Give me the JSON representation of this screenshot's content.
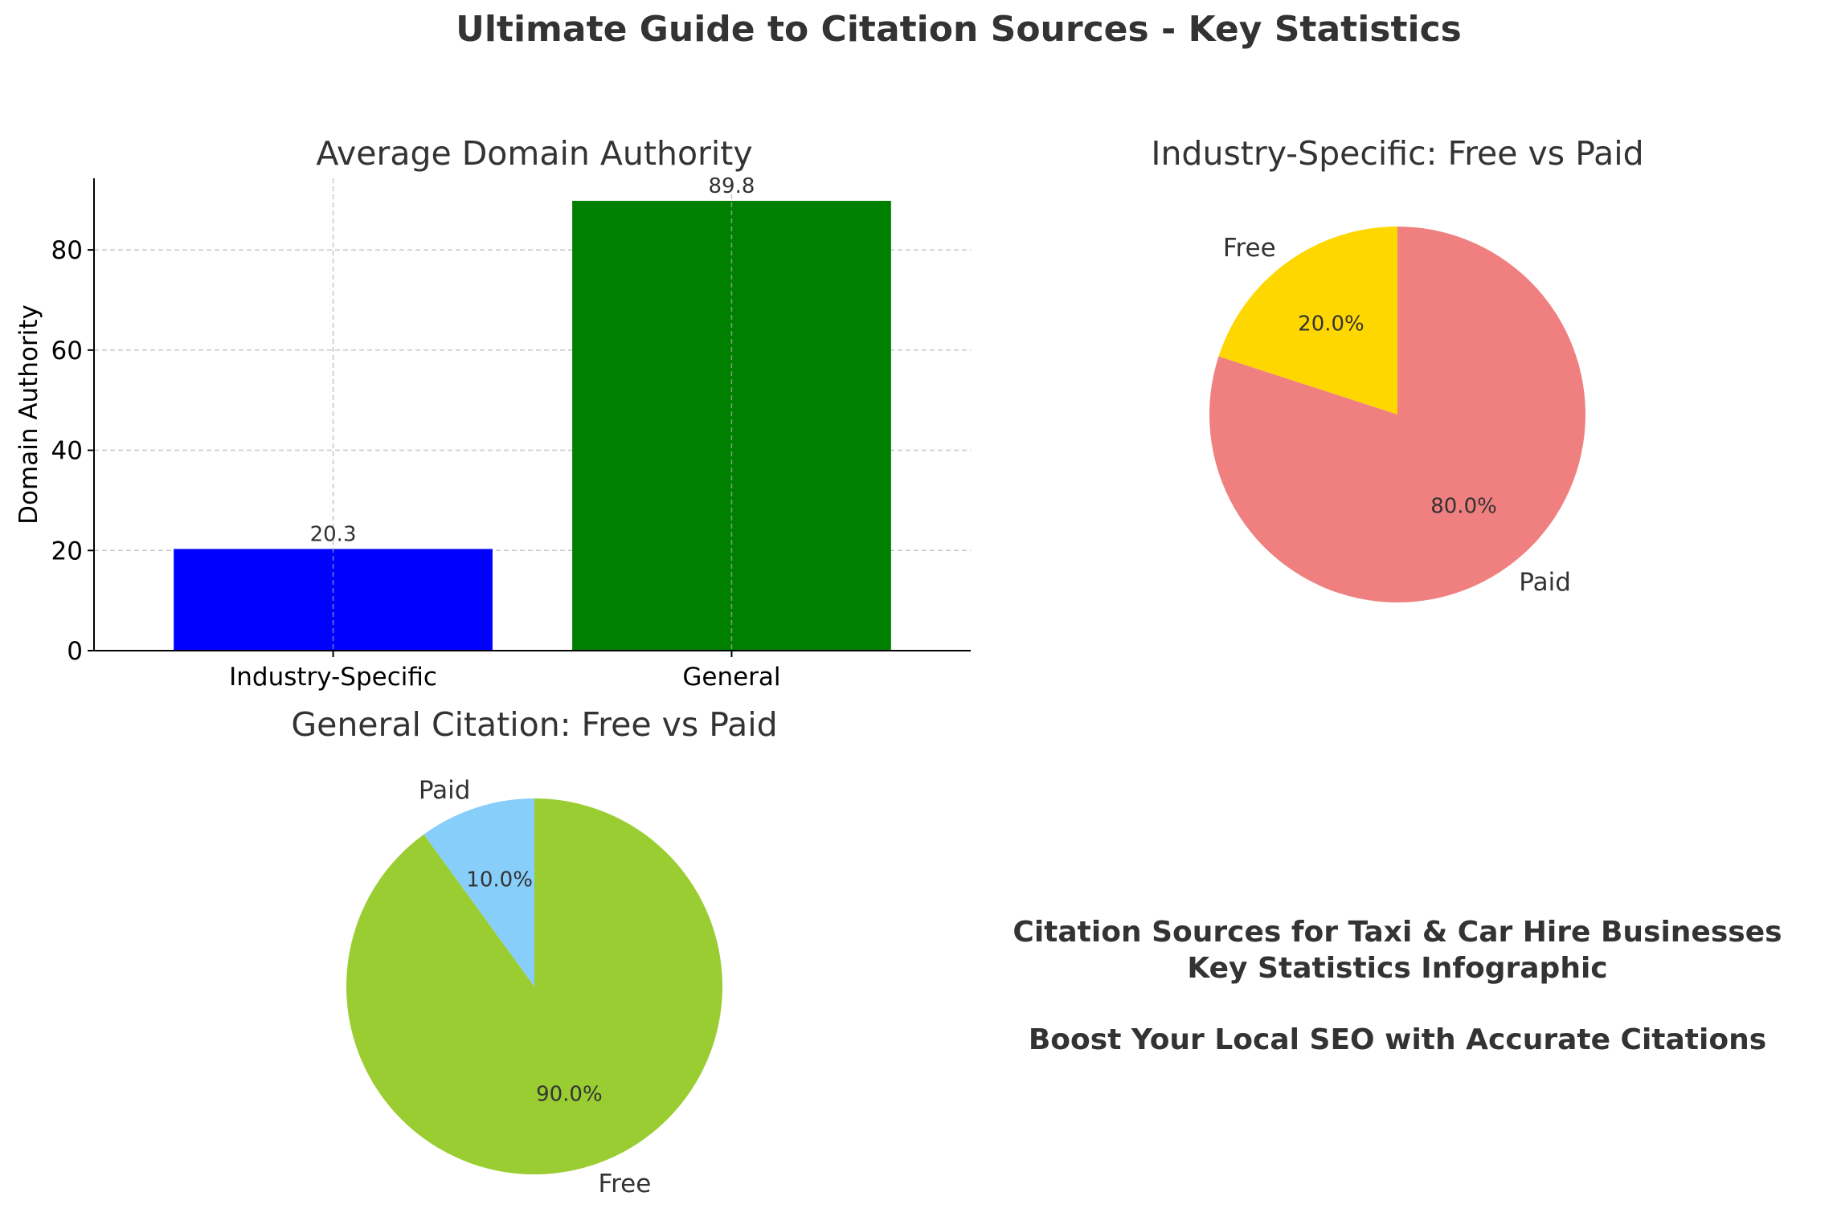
{
  "suptitle": "Ultimate Guide to Citation Sources - Key Statistics",
  "chart_data": [
    {
      "type": "bar",
      "title": "Average Domain Authority",
      "xlabel": "",
      "ylabel": "Domain Authority",
      "categories": [
        "Industry-Specific",
        "General"
      ],
      "values": [
        20.3,
        89.8
      ],
      "value_labels": [
        "20.3",
        "89.8"
      ],
      "colors": [
        "#0000ff",
        "#008000"
      ],
      "ylim": [
        0,
        94.29
      ],
      "yticks": [
        0,
        20,
        40,
        60,
        80
      ],
      "ytick_labels": [
        "0",
        "20",
        "40",
        "60",
        "80"
      ],
      "grid": true
    },
    {
      "type": "pie",
      "title": "Industry-Specific: Free vs Paid",
      "labels": [
        "Free",
        "Paid"
      ],
      "values": [
        20.0,
        80.0
      ],
      "pct_labels": [
        "20.0%",
        "80.0%"
      ],
      "colors": [
        "#ffd700",
        "#f08080"
      ],
      "start_angle": 90,
      "direction": "counterclockwise"
    },
    {
      "type": "pie",
      "title": "General Citation: Free vs Paid",
      "labels": [
        "Free",
        "Paid"
      ],
      "values": [
        90.0,
        10.0
      ],
      "pct_labels": [
        "90.0%",
        "10.0%"
      ],
      "colors": [
        "#9acd32",
        "#87cefa"
      ],
      "start_angle": 90,
      "direction": "clockwise"
    }
  ],
  "infographic": {
    "line1": "Citation Sources for Taxi & Car Hire Businesses",
    "line2": "Key Statistics Infographic",
    "line3": "Boost Your Local SEO with Accurate Citations"
  }
}
